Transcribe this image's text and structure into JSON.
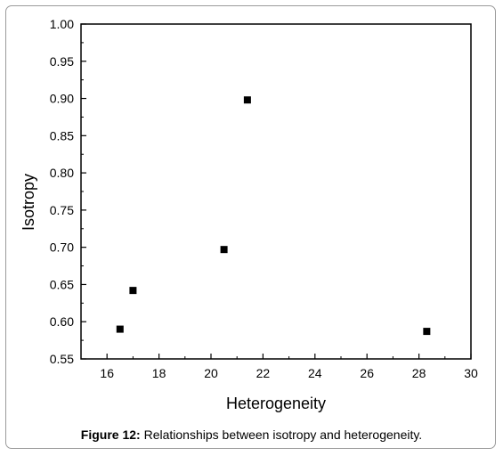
{
  "chart_data": {
    "type": "scatter",
    "xlabel": "Heterogeneity",
    "ylabel": "Isotropy",
    "xlim": [
      15,
      30
    ],
    "ylim": [
      0.55,
      1.0
    ],
    "xticks": [
      "16",
      "18",
      "20",
      "22",
      "24",
      "26",
      "28",
      "30"
    ],
    "yticks": [
      "0.55",
      "0.60",
      "0.65",
      "0.70",
      "0.75",
      "0.80",
      "0.85",
      "0.90",
      "0.95",
      "1.00"
    ],
    "grid": false,
    "marker": "square",
    "marker_color": "#000000",
    "series": [
      {
        "points": [
          {
            "x": 16.5,
            "y": 0.59
          },
          {
            "x": 17.0,
            "y": 0.642
          },
          {
            "x": 20.5,
            "y": 0.697
          },
          {
            "x": 21.4,
            "y": 0.898
          },
          {
            "x": 28.3,
            "y": 0.587
          }
        ]
      }
    ]
  },
  "caption": {
    "label": "Figure 12:",
    "text": " Relationships between isotropy and heterogeneity."
  }
}
